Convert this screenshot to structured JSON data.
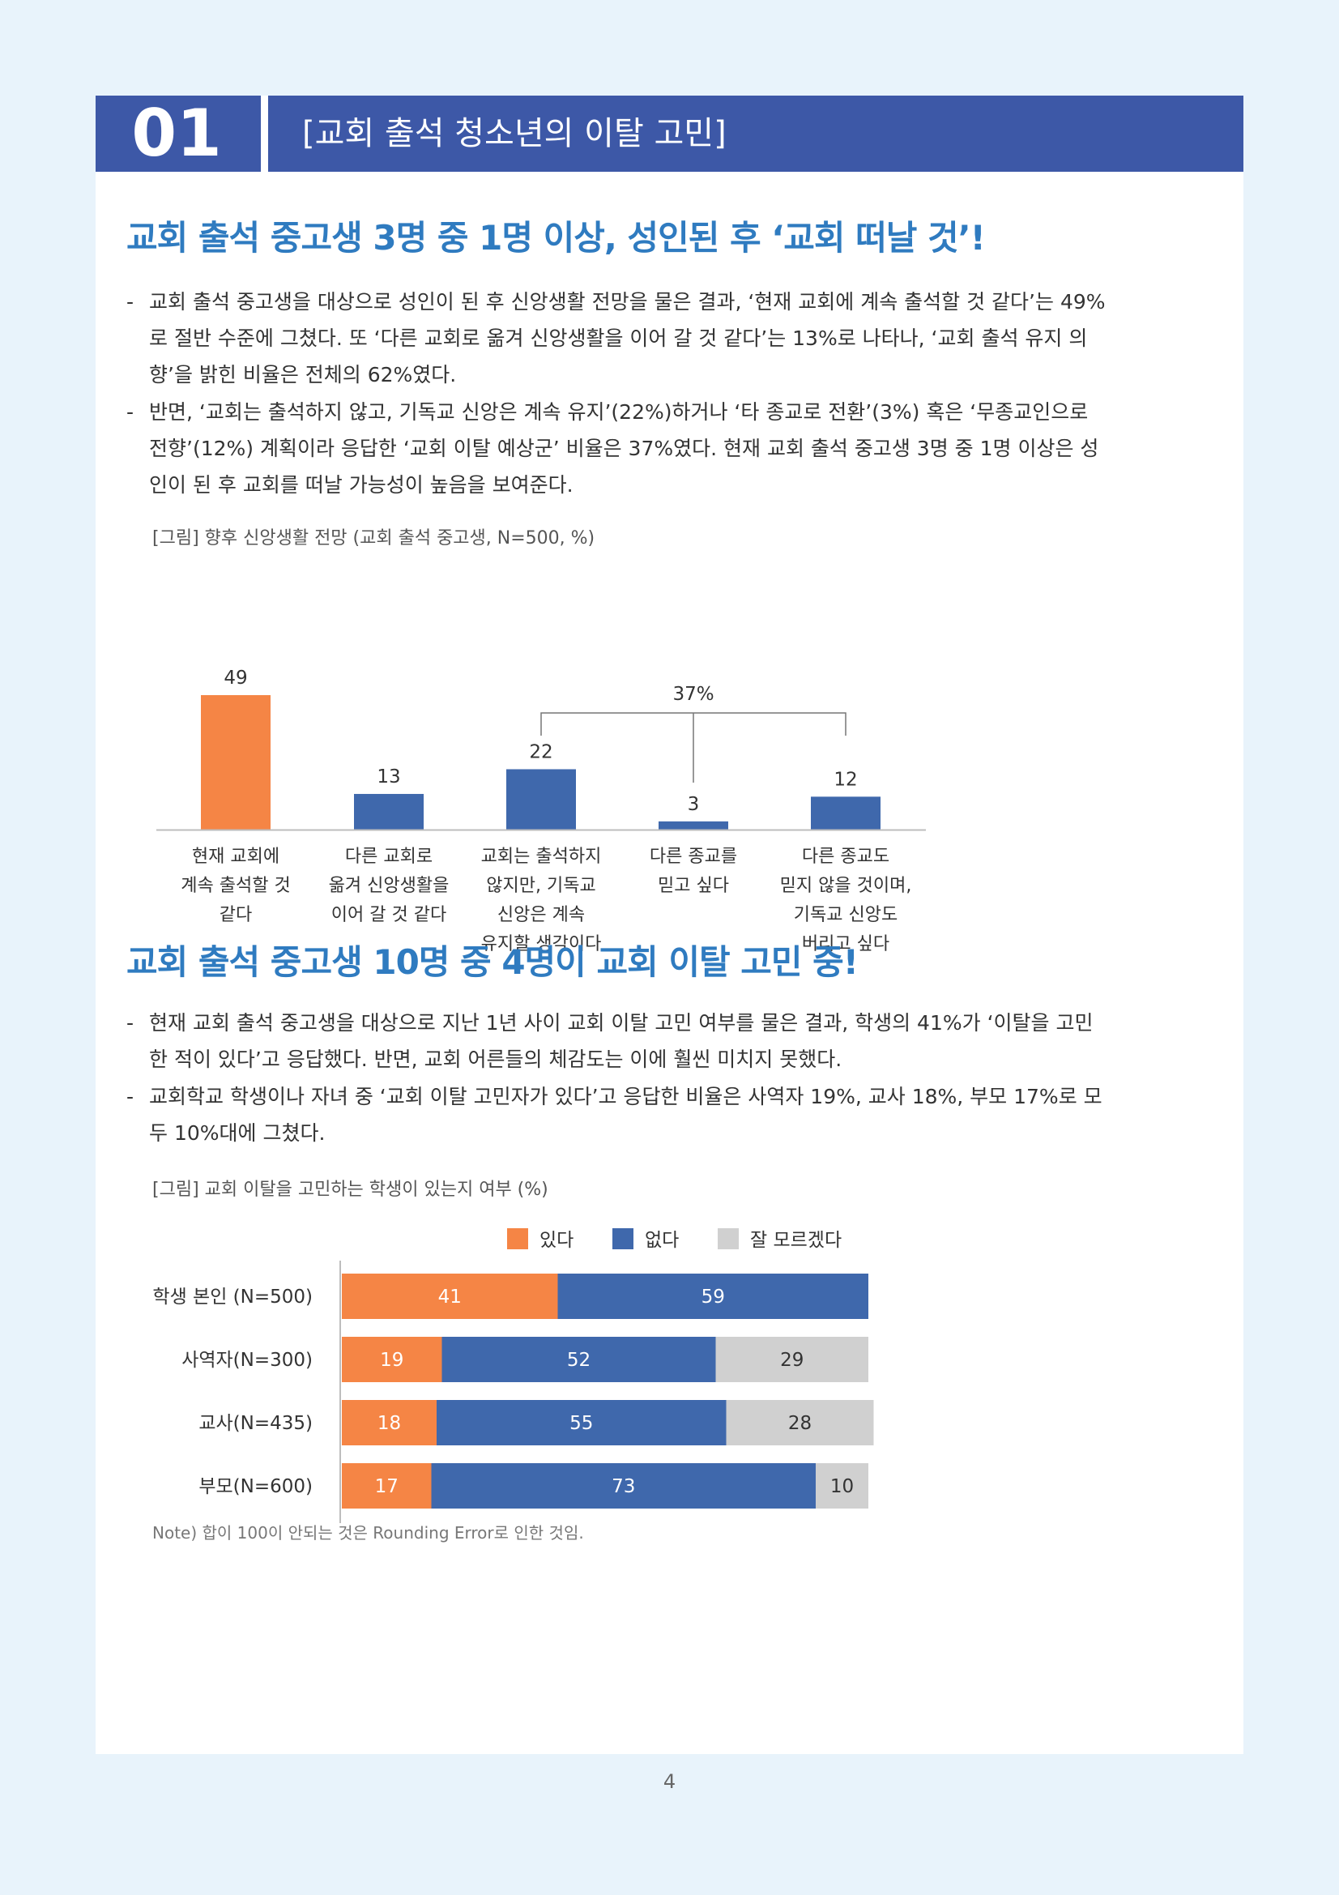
{
  "header": {
    "number": "01",
    "title": "[교회 출석 청소년의 이탈 고민]"
  },
  "section1": {
    "heading": "교회 출석 중고생 3명 중 1명 이상, 성인된 후 ‘교회 떠날 것’!",
    "bullet1": [
      "교회 출석 중고생을 대상으로 성인이 된 후 신앙생활 전망을 물은 결과, ‘현재 교회에 계속 출석할 것 같다’는 49%",
      "로 절반 수준에 그쳤다. 또 ‘다른 교회로 옮겨 신앙생활을 이어 갈 것 같다’는 13%로 나타나, ‘교회 출석 유지 의",
      "향’을 밝힌 비율은 전체의 62%였다."
    ],
    "bullet2": [
      "반면, ‘교회는 출석하지 않고, 기독교 신앙은 계속 유지’(22%)하거나 ‘타 종교로 전환’(3%) 혹은 ‘무종교인으로",
      "전향’(12%) 계획이라 응답한 ‘교회 이탈 예상군’ 비율은 37%였다. 현재 교회 출석 중고생 3명 중 1명 이상은 성",
      "인이 된 후 교회를 떠날 가능성이 높음을 보여준다."
    ]
  },
  "section2": {
    "heading": "교회 출석 중고생 10명 중 4명이 교회 이탈 고민 중!",
    "bullet1": [
      "현재 교회 출석 중고생을 대상으로 지난 1년 사이 교회 이탈 고민 여부를 물은 결과, 학생의 41%가 ‘이탈을 고민",
      "한 적이 있다’고 응답했다. 반면, 교회 어른들의 체감도는 이에 훨씬 미치지 못했다."
    ],
    "bullet2": [
      "교회학교 학생이나 자녀 중 ‘교회 이탈 고민자가 있다’고 응답한 비율은 사역자 19%, 교사 18%, 부모 17%로 모",
      "두 10%대에 그쳤다."
    ]
  },
  "chart_data": [
    {
      "type": "bar",
      "title": "[그림] 향후 신앙생활 전망 (교회 출석 중고생, N=500, %)",
      "categories": [
        [
          "현재 교회에",
          "계속 출석할 것",
          "같다"
        ],
        [
          "다른 교회로",
          "옮겨 신앙생활을",
          "이어 갈 것 같다"
        ],
        [
          "교회는 출석하지",
          "않지만, 기독교",
          "신앙은 계속",
          "유지할 생각이다"
        ],
        [
          "다른 종교를",
          "믿고 싶다"
        ],
        [
          "다른 종교도",
          "믿지 않을 것이며,",
          "기독교 신앙도",
          "버리고 싶다"
        ]
      ],
      "values": [
        49,
        13,
        22,
        3,
        12
      ],
      "value_labels": [
        "49",
        "13",
        "22",
        "3",
        "12"
      ],
      "bar_colors": [
        "#f58545",
        "#3f68ac",
        "#3f68ac",
        "#3f68ac",
        "#3f68ac"
      ],
      "group_annotation": "37%",
      "ylim": [
        0,
        49
      ]
    },
    {
      "type": "bar",
      "orientation": "horizontal-stacked",
      "title": "[그림] 교회 이탈을 고민하는 학생이 있는지 여부 (%)",
      "legend": [
        {
          "name": "있다",
          "color": "#f58545"
        },
        {
          "name": "없다",
          "color": "#3f68ac"
        },
        {
          "name": "잘 모르겠다",
          "color": "#d0d0d0"
        }
      ],
      "categories": [
        "학생 본인 (N=500)",
        "사역자(N=300)",
        "교사(N=435)",
        "부모(N=600)"
      ],
      "series": [
        {
          "name": "있다",
          "values": [
            41,
            19,
            18,
            17
          ]
        },
        {
          "name": "없다",
          "values": [
            59,
            52,
            55,
            73
          ]
        },
        {
          "name": "잘 모르겠다",
          "values": [
            null,
            29,
            28,
            10
          ]
        }
      ],
      "note": "Note) 합이 100이 안되는 것은 Rounding Error로 인한 것임."
    }
  ],
  "page_number": "4"
}
